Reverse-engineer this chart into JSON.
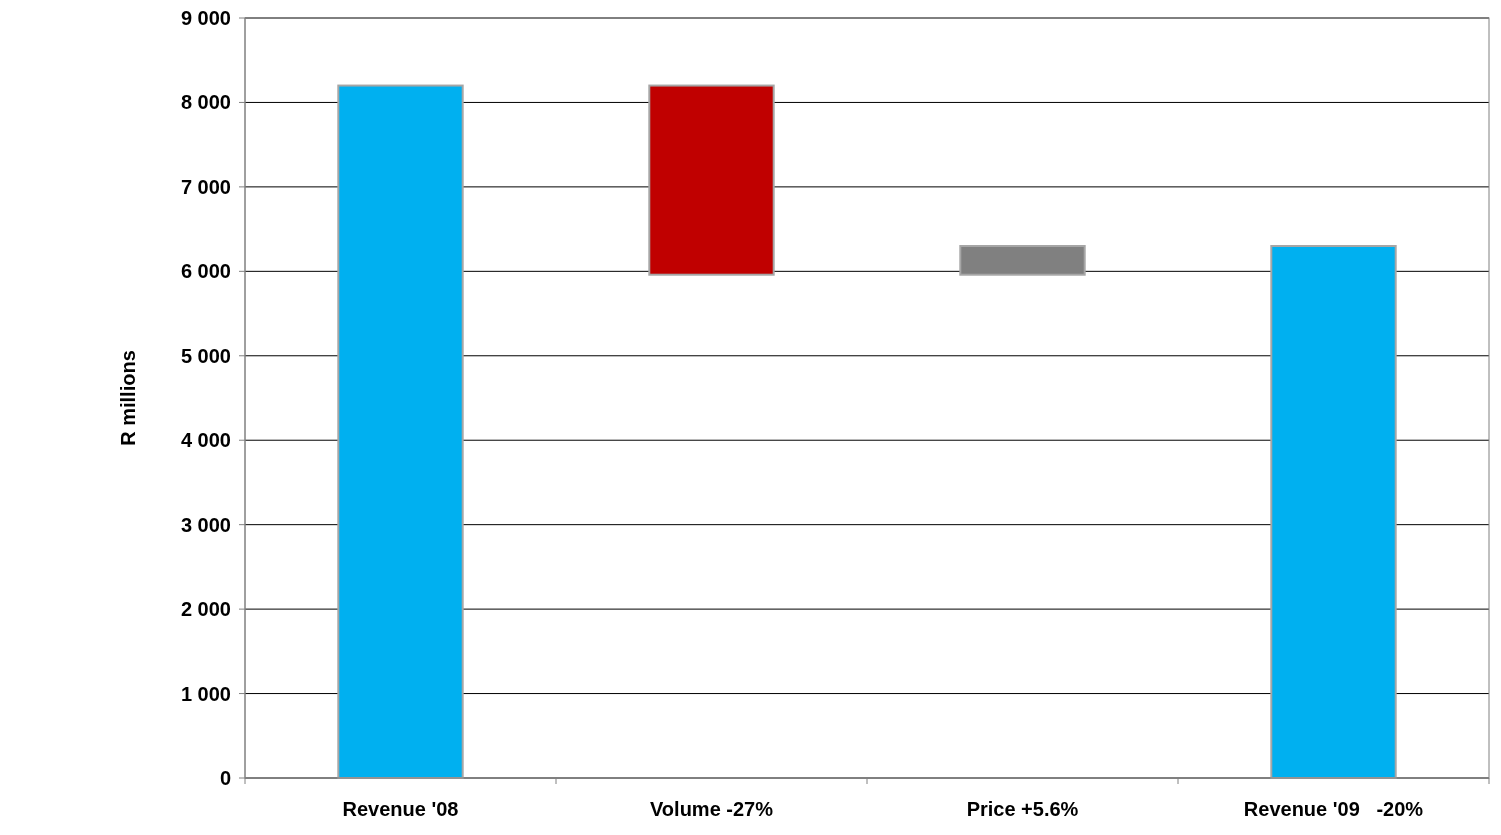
{
  "chart_data": {
    "type": "bar",
    "ylabel": "R millions",
    "categories": [
      "Revenue '08",
      "Volume -27%",
      "Price +5.6%",
      "Revenue '09   -20%"
    ],
    "values": [
      8200,
      -2240,
      340,
      6300
    ],
    "base": [
      0,
      8200,
      5960,
      0
    ],
    "colors": [
      "#00b0f0",
      "#c00000",
      "#808080",
      "#00b0f0"
    ],
    "ylim": [
      0,
      9000
    ],
    "yticks": [
      0,
      {
        "value": 1000,
        "label": "1 000"
      },
      {
        "value": 2000,
        "label": "2 000"
      },
      {
        "value": 3000,
        "label": "3 000"
      },
      {
        "value": 4000,
        "label": "4 000"
      },
      {
        "value": 5000,
        "label": "5 000"
      },
      {
        "value": 6000,
        "label": "6 000"
      },
      {
        "value": 7000,
        "label": "7 000"
      },
      {
        "value": 8000,
        "label": "8 000"
      },
      {
        "value": 9000,
        "label": "9 000"
      }
    ],
    "grid": "y"
  }
}
